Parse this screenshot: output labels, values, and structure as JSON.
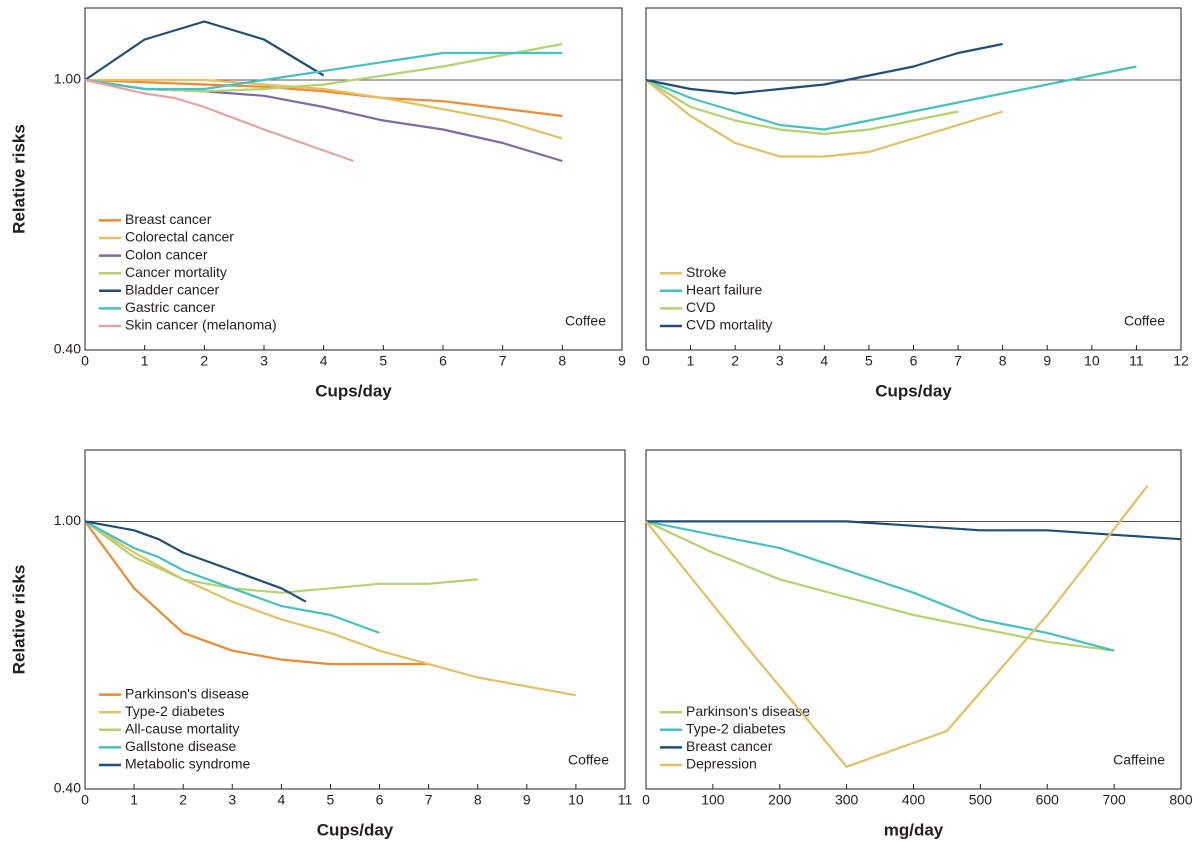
{
  "chart_data": [
    {
      "type": "line",
      "x_label": "Cups/day",
      "y_label": "Relative risks",
      "annotation": "Coffee",
      "xlim": [
        0,
        9
      ],
      "xticks": [
        0,
        1,
        2,
        3,
        4,
        5,
        6,
        7,
        8,
        9
      ],
      "ylim": [
        0.4,
        1.16
      ],
      "yticks": [
        {
          "value": 0.4,
          "label": "0.40"
        },
        {
          "value": 1.0,
          "label": "1.00"
        }
      ],
      "hline": 1,
      "series": [
        {
          "name": "Breast cancer",
          "color": "#f08a30",
          "x": [
            0,
            2,
            3,
            4,
            5,
            6,
            8
          ],
          "values": [
            1,
            0.99,
            0.985,
            0.975,
            0.96,
            0.953,
            0.92
          ]
        },
        {
          "name": "Colorectal cancer",
          "color": "#e2c063",
          "x": [
            0,
            1,
            2,
            3,
            4,
            5,
            6,
            7,
            8
          ],
          "values": [
            1,
            1,
            1,
            0.99,
            0.98,
            0.96,
            0.935,
            0.91,
            0.87
          ]
        },
        {
          "name": "Colon cancer",
          "color": "#7d6ba5",
          "x": [
            0,
            1,
            2,
            3,
            4,
            5,
            6,
            7,
            8
          ],
          "values": [
            1,
            0.98,
            0.975,
            0.965,
            0.94,
            0.91,
            0.89,
            0.86,
            0.82
          ]
        },
        {
          "name": "Cancer mortality",
          "color": "#b5d26f",
          "x": [
            0,
            1,
            2,
            3,
            4,
            5,
            6,
            8
          ],
          "values": [
            1,
            0.98,
            0.975,
            0.98,
            0.99,
            1.01,
            1.03,
            1.08
          ]
        },
        {
          "name": "Bladder cancer",
          "color": "#1f4e79",
          "x": [
            0,
            1,
            2,
            3,
            4
          ],
          "values": [
            1,
            1.09,
            1.13,
            1.09,
            1.01
          ]
        },
        {
          "name": "Gastric cancer",
          "color": "#45c1c1",
          "x": [
            0,
            1,
            2,
            3,
            4,
            5,
            6,
            8
          ],
          "values": [
            1,
            0.98,
            0.98,
            1,
            1.02,
            1.04,
            1.06,
            1.06
          ]
        },
        {
          "name": "Skin cancer (melanoma)",
          "color": "#e6a3a3",
          "x": [
            0,
            1,
            1.5,
            2,
            3,
            4.5
          ],
          "values": [
            1,
            0.97,
            0.96,
            0.94,
            0.89,
            0.82
          ]
        }
      ]
    },
    {
      "type": "line",
      "x_label": "Cups/day",
      "annotation": "Coffee",
      "xlim": [
        0,
        12
      ],
      "xticks": [
        0,
        1,
        2,
        3,
        4,
        5,
        6,
        7,
        8,
        9,
        10,
        11,
        12
      ],
      "ylim": [
        0.4,
        1.16
      ],
      "hline": 1,
      "series": [
        {
          "name": "Stroke",
          "color": "#e2c063",
          "x": [
            0,
            1,
            2,
            3,
            4,
            5,
            6,
            7,
            8
          ],
          "values": [
            1,
            0.92,
            0.86,
            0.83,
            0.83,
            0.84,
            0.87,
            0.9,
            0.93
          ]
        },
        {
          "name": "Heart failure",
          "color": "#45c1c1",
          "x": [
            0,
            1,
            2,
            3,
            4,
            5,
            6,
            7,
            8,
            9,
            10,
            11
          ],
          "values": [
            1,
            0.96,
            0.93,
            0.9,
            0.89,
            0.91,
            0.93,
            0.95,
            0.97,
            0.99,
            1.01,
            1.03
          ]
        },
        {
          "name": "CVD",
          "color": "#b5d26f",
          "x": [
            0,
            1,
            2,
            3,
            4,
            5,
            6,
            7
          ],
          "values": [
            1,
            0.94,
            0.91,
            0.89,
            0.88,
            0.89,
            0.91,
            0.93
          ]
        },
        {
          "name": "CVD mortality",
          "color": "#1f4e79",
          "x": [
            0,
            1,
            2,
            3,
            4,
            5,
            6,
            7,
            8
          ],
          "values": [
            1,
            0.98,
            0.97,
            0.98,
            0.99,
            1.01,
            1.03,
            1.06,
            1.08
          ]
        }
      ]
    },
    {
      "type": "line",
      "x_label": "Cups/day",
      "y_label": "Relative risks",
      "annotation": "Coffee",
      "xlim": [
        0,
        11
      ],
      "xticks": [
        0,
        1,
        2,
        3,
        4,
        5,
        6,
        7,
        8,
        9,
        10,
        11
      ],
      "ylim": [
        0.4,
        1.16
      ],
      "yticks": [
        {
          "value": 0.4,
          "label": "0.40"
        },
        {
          "value": 1.0,
          "label": "1.00"
        }
      ],
      "hline": 1,
      "series": [
        {
          "name": "Parkinson's disease",
          "color": "#f08a30",
          "x": [
            0,
            1,
            2,
            3,
            4,
            5,
            7
          ],
          "values": [
            1,
            0.85,
            0.75,
            0.71,
            0.69,
            0.68,
            0.68
          ]
        },
        {
          "name": "Type-2 diabetes",
          "color": "#e2c063",
          "x": [
            0,
            1,
            2,
            3,
            4,
            5,
            6,
            7,
            8,
            10
          ],
          "values": [
            1,
            0.93,
            0.87,
            0.82,
            0.78,
            0.75,
            0.71,
            0.68,
            0.65,
            0.61
          ]
        },
        {
          "name": "All-cause mortality",
          "color": "#b5d26f",
          "x": [
            0,
            1,
            2,
            3,
            4,
            5,
            6,
            7,
            8
          ],
          "values": [
            1,
            0.92,
            0.87,
            0.85,
            0.84,
            0.85,
            0.86,
            0.86,
            0.87
          ]
        },
        {
          "name": "Gallstone disease",
          "color": "#45c1c1",
          "x": [
            0,
            1,
            1.5,
            2,
            3,
            4,
            5,
            6
          ],
          "values": [
            1,
            0.94,
            0.92,
            0.89,
            0.85,
            0.81,
            0.79,
            0.75
          ]
        },
        {
          "name": "Metabolic syndrome",
          "color": "#1f4e79",
          "x": [
            0,
            1,
            1.5,
            2,
            2.5,
            3,
            4,
            4.5
          ],
          "values": [
            1,
            0.98,
            0.96,
            0.93,
            0.91,
            0.89,
            0.85,
            0.82
          ]
        }
      ]
    },
    {
      "type": "line",
      "x_label": "mg/day",
      "annotation": "Caffeine",
      "xlim": [
        0,
        800
      ],
      "xticks": [
        0,
        100,
        200,
        300,
        400,
        500,
        600,
        700,
        800
      ],
      "ylim": [
        0.4,
        1.16
      ],
      "hline": 1,
      "series": [
        {
          "name": "Parkinson's disease",
          "color": "#b5d26f",
          "x": [
            0,
            100,
            200,
            300,
            400,
            500,
            600,
            700
          ],
          "values": [
            1,
            0.93,
            0.87,
            0.83,
            0.79,
            0.76,
            0.73,
            0.71
          ]
        },
        {
          "name": "Type-2 diabetes",
          "color": "#45c1c1",
          "x": [
            0,
            100,
            200,
            300,
            400,
            500,
            600,
            700
          ],
          "values": [
            1,
            0.97,
            0.94,
            0.89,
            0.84,
            0.78,
            0.75,
            0.71
          ]
        },
        {
          "name": "Breast cancer",
          "color": "#1f4e79",
          "x": [
            0,
            100,
            200,
            300,
            400,
            500,
            600,
            700,
            800
          ],
          "values": [
            1,
            1,
            1,
            1,
            0.99,
            0.98,
            0.98,
            0.97,
            0.96
          ]
        },
        {
          "name": "Depression",
          "color": "#e2c063",
          "x": [
            0,
            150,
            300,
            450,
            600,
            750
          ],
          "values": [
            1,
            0.72,
            0.45,
            0.53,
            0.79,
            1.08
          ]
        }
      ]
    }
  ]
}
